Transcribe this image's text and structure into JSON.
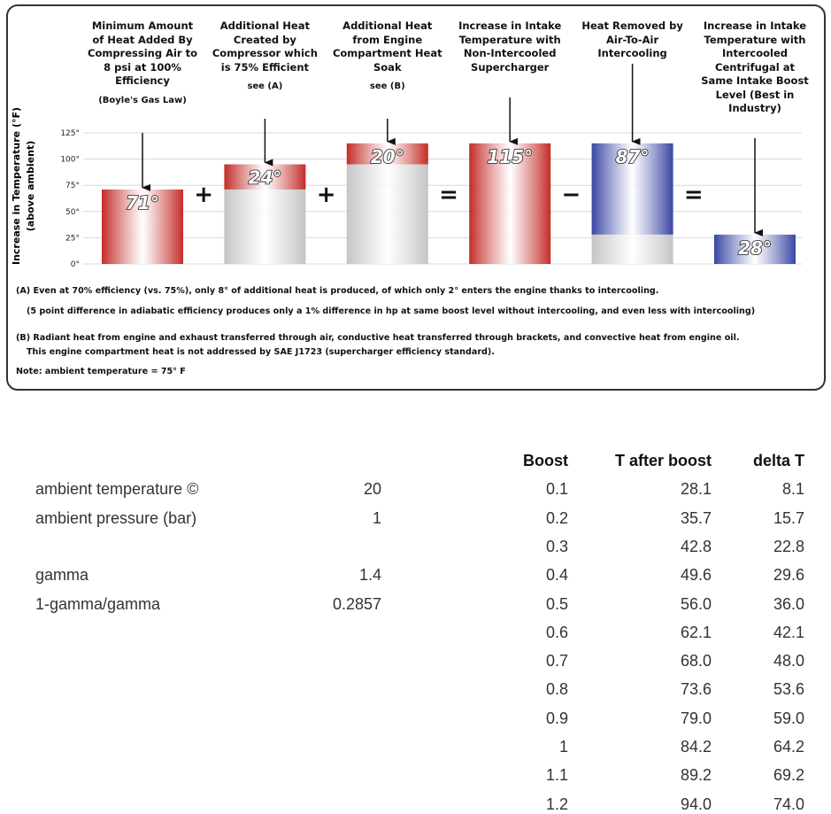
{
  "chart_data": {
    "type": "waterfall",
    "ylabel": "Increase in Temperature (°F)",
    "ylabel_note": "(above ambient)",
    "categories": [
      "Minimum Amount of Heat Added By Compressing Air to 8 psi at 100% Efficiency",
      "Additional Heat Created by Compressor which is 75% Efficient",
      "Additional Heat from Engine Compartment Heat Soak",
      "Increase in Intake Temperature with Non-Intercooled Supercharger",
      "Heat Removed by Air-To-Air Intercooling",
      "Increase in Intake Temperature with Intercooled Centrifugal at Same Intake Boost Level (Best in Industry)"
    ],
    "category_notes": [
      "(Boyle's Gas Law)",
      "see (A)",
      "see (B)",
      null,
      null,
      null
    ],
    "operators": [
      "+",
      "+",
      "=",
      "−",
      "="
    ],
    "values": [
      71,
      24,
      20,
      115,
      87,
      28
    ],
    "value_labels": [
      "71°",
      "24°",
      "20°",
      "115°",
      "87°",
      "28°"
    ],
    "colors": [
      "#c42c28",
      "#c42c28",
      "#c42c28",
      "#c42c28",
      "#3a46a4",
      "#3a46a4"
    ],
    "base_color": "#c4c4c4",
    "ylim": [
      0,
      125
    ],
    "yticks": [
      {
        "value": 0,
        "label": "0°"
      },
      {
        "value": 25,
        "label": "25°"
      },
      {
        "value": 50,
        "label": "50°"
      },
      {
        "value": 75,
        "label": "75°"
      },
      {
        "value": 100,
        "label": "100°"
      },
      {
        "value": 125,
        "label": "125°"
      }
    ],
    "grid": true,
    "notes": [
      "(A) Even at 70% efficiency (vs. 75%), only 8° of additional heat is produced, of which only 2° enters the engine thanks to intercooling.",
      "(5 point difference in adiabatic efficiency produces only a 1% difference in hp at same boost level without intercooling, and even less with intercooling)",
      "(B) Radiant heat from engine and exhaust transferred through air, conductive heat transferred through brackets, and convective heat from engine oil.",
      "This engine compartment heat is not addressed by SAE J1723 (supercharger efficiency standard).",
      "Note: ambient temperature = 75° F"
    ]
  },
  "sheet": {
    "params": [
      {
        "label": "ambient temperature ©",
        "value": "20"
      },
      {
        "label": "ambient pressure (bar)",
        "value": "1"
      },
      {
        "label": "gamma",
        "value": "1.4"
      },
      {
        "label": "1-gamma/gamma",
        "value": "0.2857"
      }
    ],
    "table": {
      "header": [
        "Boost",
        "T after boost",
        "delta T"
      ],
      "rows": [
        [
          "0.1",
          "28.1",
          "8.1"
        ],
        [
          "0.2",
          "35.7",
          "15.7"
        ],
        [
          "0.3",
          "42.8",
          "22.8"
        ],
        [
          "0.4",
          "49.6",
          "29.6"
        ],
        [
          "0.5",
          "56.0",
          "36.0"
        ],
        [
          "0.6",
          "62.1",
          "42.1"
        ],
        [
          "0.7",
          "68.0",
          "48.0"
        ],
        [
          "0.8",
          "73.6",
          "53.6"
        ],
        [
          "0.9",
          "79.0",
          "59.0"
        ],
        [
          "1",
          "84.2",
          "64.2"
        ],
        [
          "1.1",
          "89.2",
          "69.2"
        ],
        [
          "1.2",
          "94.0",
          "74.0"
        ]
      ]
    }
  }
}
